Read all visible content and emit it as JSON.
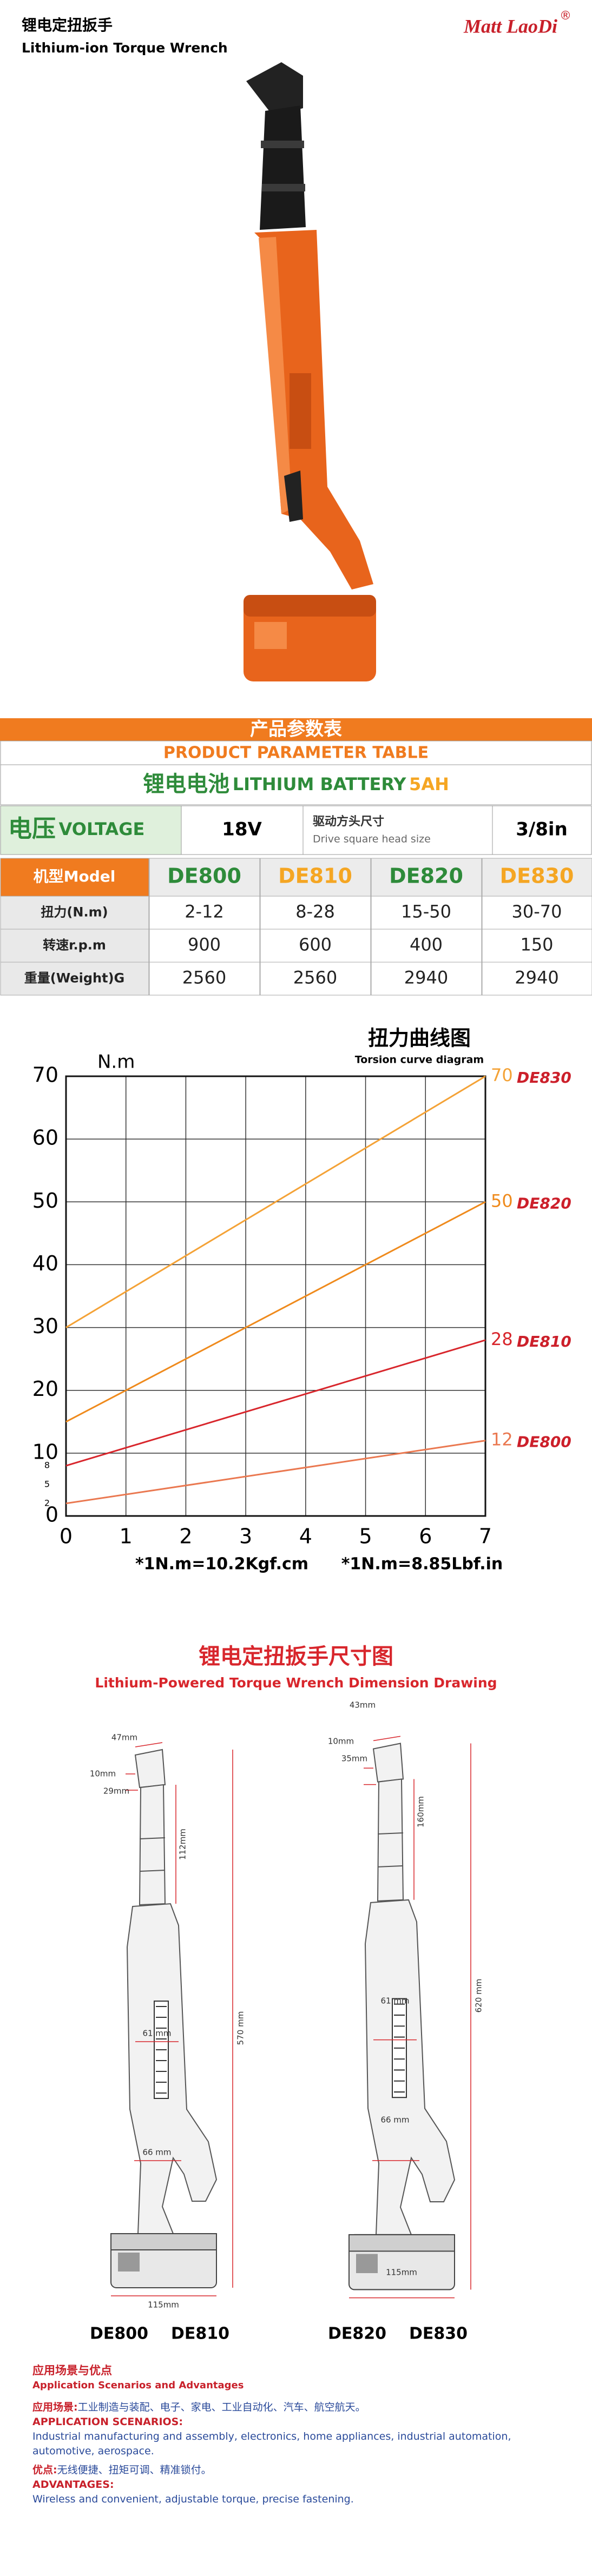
{
  "header": {
    "title_cn": "锂电定扭扳手",
    "title_en": "Lithium-ion Torque Wrench",
    "brand": "Matt LaoDi",
    "brand_mark": "®"
  },
  "parameter_table": {
    "title_cn": "产品参数表",
    "title_en": "PRODUCT PARAMETER TABLE",
    "battery_cn": "锂电电池",
    "battery_en": "LITHIUM BATTERY",
    "battery_capacity": "5AH",
    "voltage_cn": "电压",
    "voltage_en": "VOLTAGE",
    "voltage_value": "18V",
    "drive_cn": "驱动方头尺寸",
    "drive_en": "Drive square head size",
    "drive_value": "3/8in",
    "columns": [
      "机型Model",
      "DE800",
      "DE810",
      "DE820",
      "DE830"
    ],
    "column_colors": [
      "#ffffff",
      "#2e8b3a",
      "#f5a623",
      "#2e8b3a",
      "#f5a623"
    ],
    "rows": [
      [
        "扭力(N.m)",
        "2-12",
        "8-28",
        "15-50",
        "30-70"
      ],
      [
        "转速r.p.m",
        "900",
        "600",
        "400",
        "150"
      ],
      [
        "重量(Weight)G",
        "2560",
        "2560",
        "2940",
        "2940"
      ]
    ]
  },
  "chart_data": {
    "type": "line",
    "title": "扭力曲线图",
    "subtitle": "Torsion curve diagram",
    "y_label": "N.m",
    "x": [
      0,
      7
    ],
    "xlim": [
      0,
      7
    ],
    "xticks": [
      0,
      1,
      2,
      3,
      4,
      5,
      6,
      7
    ],
    "ylim": [
      0,
      70
    ],
    "yticks": [
      0,
      10,
      20,
      30,
      40,
      50,
      60,
      70
    ],
    "grid": true,
    "series": [
      {
        "name": "DE830",
        "color": "#f4a236",
        "values": [
          30,
          70
        ]
      },
      {
        "name": "DE820",
        "color": "#ef8a1c",
        "values": [
          15,
          50
        ]
      },
      {
        "name": "DE810",
        "color": "#d8262c",
        "values": [
          8,
          28
        ]
      },
      {
        "name": "DE800",
        "color": "#ea7850",
        "values": [
          2,
          12
        ]
      }
    ],
    "name_color": "#cc1f2a",
    "small_labels": [
      8,
      5,
      2
    ],
    "notes": [
      "*1N.m=10.2Kgf.cm",
      "*1N.m=8.85Lbf.in"
    ]
  },
  "dimension_drawing": {
    "title_cn": "锂电定扭扳手尺寸图",
    "title_en": "Lithium-Powered Torque Wrench Dimension Drawing",
    "left": {
      "head_width": "47mm",
      "square": "10mm",
      "head_depth": "29mm",
      "head_length": "112mm",
      "body_width": "61 mm",
      "total_length": "570 mm",
      "grip_width": "66 mm",
      "battery_width": "115mm",
      "models": [
        "DE800",
        "DE810"
      ]
    },
    "right": {
      "head_width": "43mm",
      "square": "10mm",
      "head_depth": "35mm",
      "head_length": "160mm",
      "body_width": "61 mm",
      "total_length": "620 mm",
      "grip_width": "66 mm",
      "battery_width": "115mm",
      "models": [
        "DE820",
        "DE830"
      ]
    }
  },
  "applications": {
    "title_cn": "应用场景与优点",
    "title_en": "Application Scenarios and Advantages",
    "scenarios_label_cn": "应用场景:",
    "scenarios_cn": "工业制造与装配、电子、家电、工业自动化、汽车、航空航天。",
    "scenarios_label_en": "APPLICATION SCENARIOS:",
    "scenarios_en": "Industrial manufacturing and assembly, electronics, home appliances, industrial automation, automotive, aerospace.",
    "advantages_label_cn": "优点:",
    "advantages_cn": "无线便捷、扭矩可调、精准锁付。",
    "advantages_label_en": "ADVANTAGES:",
    "advantages_en": "Wireless and convenient, adjustable torque, precise fastening."
  }
}
